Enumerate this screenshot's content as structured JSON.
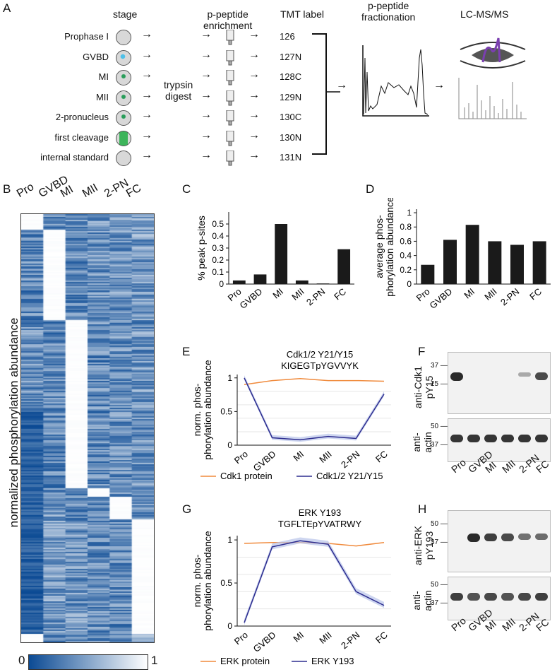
{
  "panelA": {
    "label": "A",
    "headers": {
      "stage": "stage",
      "enrich": "p-peptide\nenrichment",
      "tmt": "TMT label",
      "frac": "p-peptide\nfractionation",
      "lcms": "LC-MS/MS"
    },
    "stages": [
      "Prophase I",
      "GVBD",
      "MI",
      "MII",
      "2-pronucleus",
      "first cleavage",
      "internal standard"
    ],
    "tmt_labels": [
      "126",
      "127N",
      "128C",
      "129N",
      "130C",
      "130N",
      "131N"
    ],
    "digest": "trypsin\ndigest"
  },
  "panelB": {
    "label": "B",
    "columns": [
      "Pro",
      "GVBD",
      "MI",
      "MII",
      "2-PN",
      "FC"
    ],
    "ylabel": "normalized phosphorylation abundance",
    "scale_min": "0",
    "scale_max": "1"
  },
  "panelF": {
    "label": "F",
    "top_label": "anti-Cdk1\npY15",
    "bottom_label": "anti-\nactin",
    "top_markers": [
      "37",
      "25"
    ],
    "bottom_markers": [
      "50",
      "37"
    ],
    "lanes": [
      "Pro",
      "GVBD",
      "MI",
      "MII",
      "2-PN",
      "FC"
    ]
  },
  "panelH": {
    "label": "H",
    "top_label": "anti-ERK\npY193",
    "bottom_label": "anti-\nactin",
    "top_markers": [
      "50",
      "37"
    ],
    "bottom_markers": [
      "50",
      "37"
    ],
    "lanes": [
      "Pro",
      "GVBD",
      "MI",
      "MII",
      "2-PN",
      "FC"
    ]
  },
  "chart_data": [
    {
      "panel": "C",
      "type": "bar",
      "categories": [
        "Pro",
        "GVBD",
        "MI",
        "MII",
        "2-PN",
        "FC"
      ],
      "values": [
        0.03,
        0.08,
        0.5,
        0.03,
        0.005,
        0.29
      ],
      "ylabel": "% peak p-sites",
      "ylim": [
        0,
        0.6
      ],
      "yticks": [
        "0",
        "0.1",
        "0.2",
        "0.3",
        "0.4",
        "0.5"
      ]
    },
    {
      "panel": "D",
      "type": "bar",
      "categories": [
        "Pro",
        "GVBD",
        "MI",
        "MII",
        "2-PN",
        "FC"
      ],
      "values": [
        0.27,
        0.62,
        0.83,
        0.6,
        0.55,
        0.6
      ],
      "ylabel": "average phos-\nphorylation abundance",
      "ylim": [
        0,
        1.05
      ],
      "yticks": [
        "0",
        "0.2",
        "0.4",
        "0.6",
        "0.8",
        "1"
      ]
    },
    {
      "panel": "E",
      "type": "line",
      "title": "Cdk1/2 Y21/Y15\nKIGEGTpYGVVYK",
      "ylabel": "norm. phos-\nphorylation abundance",
      "categories": [
        "Pro",
        "GVBD",
        "MI",
        "MII",
        "2-PN",
        "FC"
      ],
      "ylim": [
        0,
        1.05
      ],
      "yticks": [
        "0",
        "0.5",
        "1"
      ],
      "series": [
        {
          "name": "Cdk1 protein",
          "color": "#f08a3c",
          "values": [
            0.9,
            0.96,
            0.99,
            0.96,
            0.96,
            0.95
          ]
        },
        {
          "name": "Cdk1/2 Y21/Y15",
          "color": "#2d2d8f",
          "values": [
            1.0,
            0.11,
            0.08,
            0.13,
            0.1,
            0.76
          ]
        }
      ]
    },
    {
      "panel": "G",
      "type": "line",
      "title": "ERK Y193\nTGFLTEpYVATRWY",
      "ylabel": "norm. phos-\nphorylation abundance",
      "categories": [
        "Pro",
        "GVBD",
        "MI",
        "MII",
        "2-PN",
        "FC"
      ],
      "ylim": [
        0,
        1.05
      ],
      "yticks": [
        "0",
        "0.5",
        "1"
      ],
      "series": [
        {
          "name": "ERK protein",
          "color": "#f08a3c",
          "values": [
            0.96,
            0.97,
            0.97,
            0.96,
            0.93,
            0.97
          ]
        },
        {
          "name": "ERK Y193",
          "color": "#2d2d8f",
          "values": [
            0.04,
            0.92,
            0.99,
            0.95,
            0.4,
            0.24
          ]
        }
      ]
    }
  ]
}
